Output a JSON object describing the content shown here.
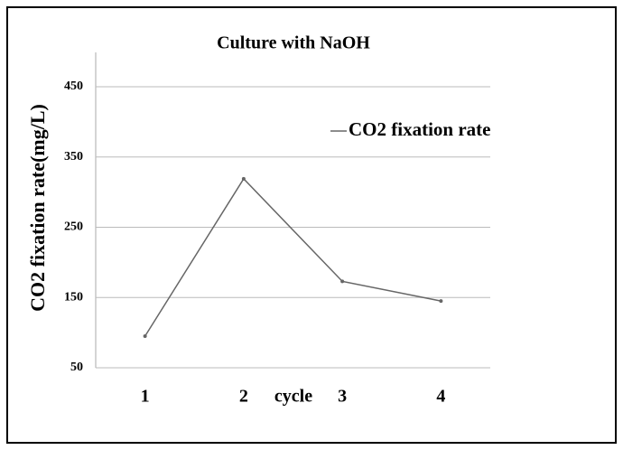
{
  "chart_data": {
    "type": "line",
    "title": "Culture with NaOH",
    "x_label": "cycle",
    "y_label": "CO2 fixation rate(mg/L)",
    "categories": [
      "1",
      "2",
      "3",
      "4"
    ],
    "series": [
      {
        "name": "CO2 fixation rate",
        "color": "#666666",
        "values": [
          95,
          319,
          173,
          145
        ]
      }
    ],
    "ylim": [
      50,
      450
    ],
    "yticks": [
      50,
      150,
      250,
      350,
      450
    ],
    "grid": true,
    "legend": "upper right"
  }
}
